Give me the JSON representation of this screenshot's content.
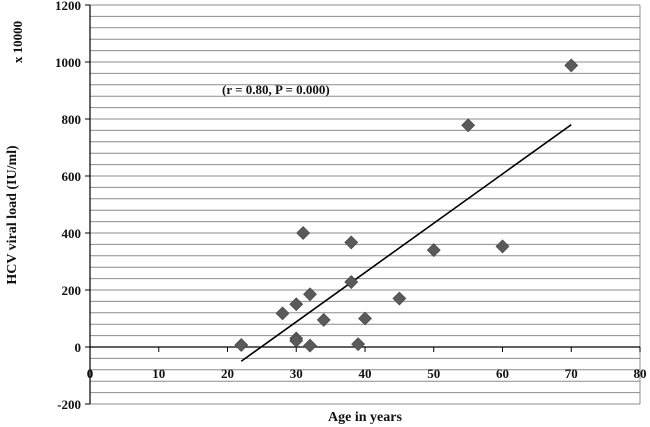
{
  "chart_data": {
    "type": "scatter",
    "title": "",
    "xlabel": "Age in years",
    "ylabel": "HCV viral load (IU/ml)",
    "y_multiplier": "x 10000",
    "annotation": "(r = 0.80, P = 0.000)",
    "xlim": [
      0,
      80
    ],
    "ylim": [
      -200,
      1200
    ],
    "x_ticks": [
      "0",
      "10",
      "20",
      "30",
      "40",
      "50",
      "60",
      "70",
      "80"
    ],
    "y_ticks": [
      "-200",
      "0",
      "200",
      "400",
      "600",
      "800",
      "1000",
      "1200"
    ],
    "grid": "horizontal gridlines every 40",
    "legend": "none",
    "colors": {
      "points": "#5a5a5a",
      "trend": "#000000",
      "grid": "#8c8c8c"
    },
    "points": [
      {
        "x": 22,
        "y": 7
      },
      {
        "x": 28,
        "y": 118
      },
      {
        "x": 30,
        "y": 150
      },
      {
        "x": 30,
        "y": 30
      },
      {
        "x": 30,
        "y": 22
      },
      {
        "x": 31,
        "y": 400
      },
      {
        "x": 32,
        "y": 185
      },
      {
        "x": 32,
        "y": 5
      },
      {
        "x": 34,
        "y": 95
      },
      {
        "x": 38,
        "y": 367
      },
      {
        "x": 38,
        "y": 228
      },
      {
        "x": 39,
        "y": 10
      },
      {
        "x": 40,
        "y": 100
      },
      {
        "x": 45,
        "y": 170
      },
      {
        "x": 50,
        "y": 340
      },
      {
        "x": 55,
        "y": 778
      },
      {
        "x": 60,
        "y": 353
      },
      {
        "x": 70,
        "y": 988
      }
    ],
    "trendline": {
      "x": [
        22,
        70
      ],
      "y": [
        -50,
        780
      ]
    }
  }
}
